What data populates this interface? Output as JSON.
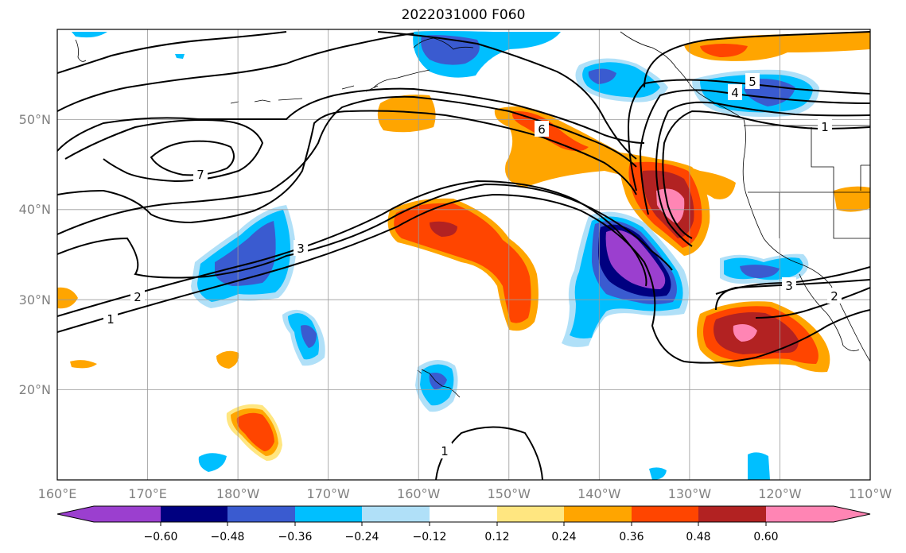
{
  "title": "2022031000 F060",
  "map": {
    "lon_range": [
      160,
      250
    ],
    "lat_range": [
      10,
      60
    ],
    "x_ticks": [
      {
        "lon": 160,
        "label": "160°E"
      },
      {
        "lon": 170,
        "label": "170°E"
      },
      {
        "lon": 180,
        "label": "180°W"
      },
      {
        "lon": 190,
        "label": "170°W"
      },
      {
        "lon": 200,
        "label": "160°W"
      },
      {
        "lon": 210,
        "label": "150°W"
      },
      {
        "lon": 220,
        "label": "140°W"
      },
      {
        "lon": 230,
        "label": "130°W"
      },
      {
        "lon": 240,
        "label": "120°W"
      },
      {
        "lon": 250,
        "label": "110°W"
      }
    ],
    "y_ticks": [
      {
        "lat": 20,
        "label": "20°N"
      },
      {
        "lat": 30,
        "label": "30°N"
      },
      {
        "lat": 40,
        "label": "40°N"
      },
      {
        "lat": 50,
        "label": "50°N"
      }
    ],
    "grid": true,
    "contour_labels": [
      "7",
      "3",
      "2",
      "1",
      "6",
      "5",
      "4",
      "1",
      "3",
      "2",
      "1"
    ]
  },
  "colorbar": {
    "colors": [
      "#9b3fcf",
      "#000080",
      "#3a5bd0",
      "#00bfff",
      "#b0e0f8",
      "#ffffff",
      "#ffe680",
      "#ffa500",
      "#ff4500",
      "#b22222",
      "#ff85b4"
    ],
    "tick_labels": [
      "−0.60",
      "−0.48",
      "−0.36",
      "−0.24",
      "−0.12",
      "0.12",
      "0.24",
      "0.36",
      "0.48",
      "0.60"
    ],
    "extend": "both"
  }
}
